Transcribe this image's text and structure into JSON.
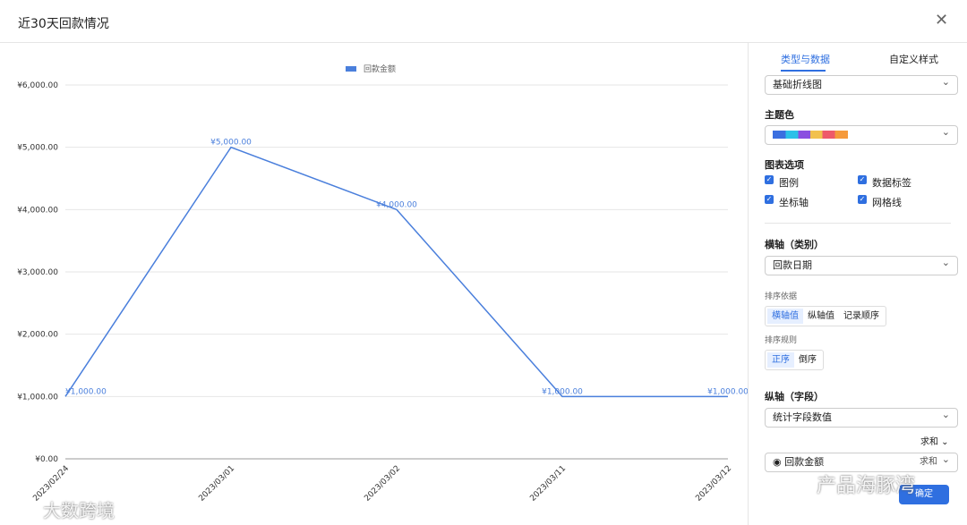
{
  "dialog": {
    "title": "近30天回款情况"
  },
  "chart_data": {
    "type": "line",
    "categories": [
      "2023/02/24",
      "2023/03/01",
      "2023/03/02",
      "2023/03/11",
      "2023/03/12"
    ],
    "series": [
      {
        "name": "回款金额",
        "color": "#4a7fdc",
        "values": [
          1000,
          5000,
          4000,
          1000,
          1000
        ],
        "value_labels": [
          "¥1,000.00",
          "¥5,000.00",
          "¥4,000.00",
          "¥1,000.00",
          "¥1,000.00"
        ]
      }
    ],
    "ylim": [
      0,
      6000
    ],
    "yticks": [
      {
        "value": 0,
        "label": "¥0.00"
      },
      {
        "value": 1000,
        "label": "¥1,000.00"
      },
      {
        "value": 2000,
        "label": "¥2,000.00"
      },
      {
        "value": 3000,
        "label": "¥3,000.00"
      },
      {
        "value": 4000,
        "label": "¥4,000.00"
      },
      {
        "value": 5000,
        "label": "¥5,000.00"
      },
      {
        "value": 6000,
        "label": "¥6,000.00"
      }
    ],
    "grid": true,
    "legend": "top"
  },
  "panel": {
    "tabs": [
      "类型与数据",
      "自定义样式"
    ],
    "chart_type": "基础折线图",
    "theme_color_label": "主题色",
    "options_label": "图表选项",
    "options": [
      "图例",
      "数据标签",
      "坐标轴",
      "网格线"
    ],
    "x_axis_label": "横轴（类别）",
    "x_field": "回款日期",
    "sort_by_label": "排序依据",
    "sort_by": [
      "横轴值",
      "纵轴值",
      "记录顺序"
    ],
    "sort_rule_label": "排序规则",
    "sort_rule": [
      "正序",
      "倒序"
    ],
    "y_axis_label": "纵轴（字段）",
    "y_field": "统计字段数值",
    "aggregate": "求和",
    "field_name": "回款金额",
    "field_agg": "求和",
    "confirm": "确定"
  },
  "watermarks": [
    "大数跨境",
    "产品海豚湾"
  ]
}
